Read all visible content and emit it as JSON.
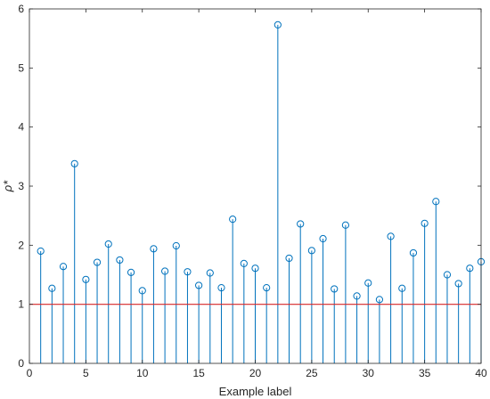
{
  "chart_data": {
    "type": "stem",
    "xlabel": "Example label",
    "ylabel": "ρ*",
    "xlim": [
      0,
      40
    ],
    "ylim": [
      0,
      6
    ],
    "xticks": [
      0,
      5,
      10,
      15,
      20,
      25,
      30,
      35,
      40
    ],
    "yticks": [
      0,
      1,
      2,
      3,
      4,
      5,
      6
    ],
    "grid": false,
    "series": [
      {
        "x": [
          1,
          2,
          3,
          4,
          5,
          6,
          7,
          8,
          9,
          10,
          11,
          12,
          13,
          14,
          15,
          16,
          17,
          18,
          19,
          20,
          21,
          22,
          23,
          24,
          25,
          26,
          27,
          28,
          29,
          30,
          31,
          32,
          33,
          34,
          35,
          36,
          37,
          38,
          39,
          40
        ],
        "y": [
          1.9,
          1.27,
          1.64,
          3.38,
          1.42,
          1.71,
          2.02,
          1.75,
          1.54,
          1.23,
          1.94,
          1.56,
          1.99,
          1.55,
          1.32,
          1.53,
          1.28,
          2.44,
          1.69,
          1.61,
          1.28,
          5.73,
          1.78,
          2.36,
          1.91,
          2.11,
          1.26,
          2.34,
          1.14,
          1.36,
          1.08,
          2.15,
          1.27,
          1.87,
          2.37,
          2.74,
          1.5,
          1.35,
          1.61,
          1.72
        ],
        "color": "#0072BD"
      }
    ],
    "reference_line": {
      "y": 1,
      "color": "#D62728"
    }
  }
}
